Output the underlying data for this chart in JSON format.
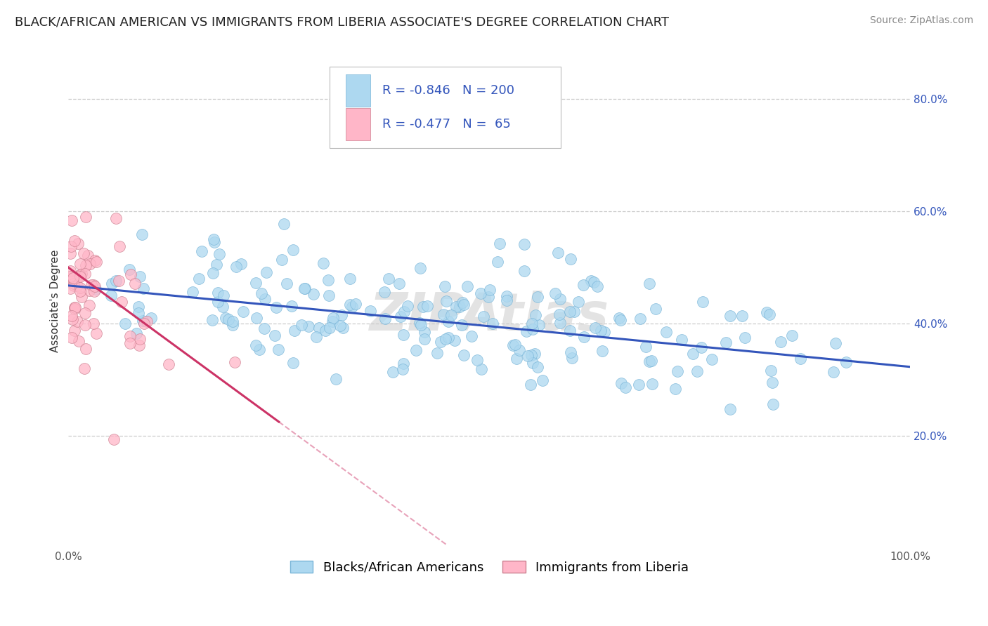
{
  "title": "BLACK/AFRICAN AMERICAN VS IMMIGRANTS FROM LIBERIA ASSOCIATE'S DEGREE CORRELATION CHART",
  "source": "Source: ZipAtlas.com",
  "ylabel": "Associate's Degree",
  "watermark": "ZIPAtlas",
  "xlim": [
    0.0,
    1.0
  ],
  "ylim": [
    0.0,
    0.88
  ],
  "x_ticks": [
    0.0,
    1.0
  ],
  "x_tick_labels": [
    "0.0%",
    "100.0%"
  ],
  "y_ticks": [
    0.2,
    0.4,
    0.6,
    0.8
  ],
  "y_tick_labels": [
    "20.0%",
    "40.0%",
    "60.0%",
    "80.0%"
  ],
  "blue_R": -0.846,
  "blue_N": 200,
  "pink_R": -0.477,
  "pink_N": 65,
  "blue_color": "#ADD8F0",
  "blue_edge": "#7ab5d8",
  "blue_line": "#3355BB",
  "pink_color": "#FFB6C8",
  "pink_edge": "#cc8090",
  "pink_line": "#CC3366",
  "legend_blue_label": "Blacks/African Americans",
  "legend_pink_label": "Immigrants from Liberia",
  "blue_intercept": 0.468,
  "blue_slope": -0.145,
  "pink_intercept": 0.5,
  "pink_slope": -1.1,
  "blue_seed": 42,
  "pink_seed": 7,
  "background_color": "#ffffff",
  "grid_color": "#cccccc",
  "title_fontsize": 13,
  "axis_label_fontsize": 11,
  "tick_fontsize": 11,
  "legend_fontsize": 13,
  "source_fontsize": 10,
  "legend_text_color": "#3355BB",
  "legend_label_color": "#333333"
}
